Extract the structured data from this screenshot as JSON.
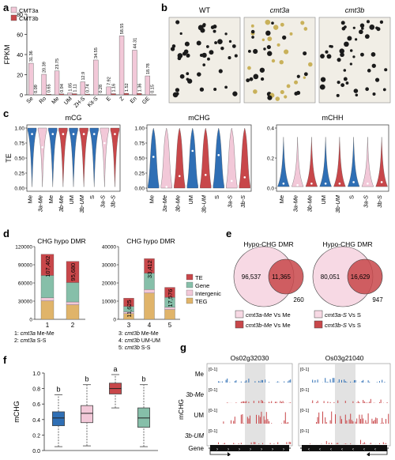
{
  "panel_labels": {
    "a": "a",
    "b": "b",
    "c": "c",
    "d": "d",
    "e": "e",
    "f": "f",
    "g": "g"
  },
  "colors": {
    "pink": "#f2c8d8",
    "red": "#c8474a",
    "blue": "#2f6fb5",
    "teal": "#86bfa9",
    "tan": "#e0b46a",
    "gray": "#aaaaaa"
  },
  "chart_data": [
    {
      "panel": "a",
      "type": "bar",
      "ylabel": "FPKM",
      "ylim": [
        0,
        80
      ],
      "yticks": [
        0,
        20,
        40,
        60,
        80
      ],
      "categories": [
        "Se",
        "Ro",
        "Me",
        "UM",
        "ZH-S",
        "Kit-S",
        "E",
        "Z",
        "En",
        "GE"
      ],
      "series": [
        {
          "name": "CMT3a",
          "color": "#f2c8d8",
          "values": [
            31.36,
            20.39,
            23.75,
            1.85,
            12.9,
            34.55,
            7.92,
            58.55,
            44.31,
            18.78
          ],
          "labels": [
            "31.36",
            "20.39",
            "23.75",
            "1.85",
            "12.9",
            "34.55",
            "7.92",
            "58.55",
            "44.31",
            "18.78"
          ]
        },
        {
          "name": "CMT3b",
          "color": "#c8474a",
          "values": [
            0.09,
            0.65,
            0.94,
            1.11,
            0.74,
            0.28,
            1.16,
            1.52,
            1.36,
            0.15
          ],
          "labels": [
            "0.09",
            "0.65",
            "0.94",
            "1.11",
            "0.74",
            "0.28",
            "1.16",
            "1.52",
            "1.36",
            "0.15"
          ]
        }
      ]
    },
    {
      "panel": "c",
      "type": "violin",
      "ylabel": "TE",
      "charts": [
        {
          "title": "mCG",
          "ylim": [
            0,
            1.0
          ],
          "yticks": [
            "0.00",
            "0.25",
            "0.50",
            "0.75",
            "1.00"
          ],
          "categories": [
            "Me",
            "3a-Me",
            "Me",
            "3b-Me",
            "UM",
            "3b-UM",
            "S",
            "3a-S",
            "3b-S"
          ],
          "medians": [
            0.9,
            0.68,
            0.9,
            0.9,
            0.9,
            0.9,
            0.9,
            0.75,
            0.9
          ]
        },
        {
          "title": "mCHG",
          "ylim": [
            0,
            1.0
          ],
          "yticks": [
            "0.00",
            "0.25",
            "0.50",
            "0.75",
            "1.00"
          ],
          "categories": [
            "Me",
            "3a-Me",
            "3b-Me",
            "UM",
            "3b-UM",
            "S",
            "3a-S",
            "3b-S"
          ],
          "medians": [
            0.52,
            0.02,
            0.2,
            0.62,
            0.22,
            0.55,
            0.12,
            0.18
          ]
        },
        {
          "title": "mCHH",
          "ylim": [
            0,
            0.4
          ],
          "yticks": [
            "0.0",
            "0.2",
            "0.4"
          ],
          "categories": [
            "Me",
            "3a-Me",
            "3b-Me",
            "UM",
            "3b-UM",
            "S",
            "3a-S",
            "3b-S"
          ],
          "medians": [
            0.03,
            0.02,
            0.03,
            0.03,
            0.03,
            0.04,
            0.03,
            0.04
          ]
        }
      ]
    },
    {
      "panel": "d",
      "type": "stacked-bar",
      "legend": [
        "TE",
        "Gene",
        "Intergenic",
        "TEG"
      ],
      "left": {
        "title": "CHG hypo DMR",
        "ylim": [
          0,
          120000
        ],
        "yticks": [
          "0",
          "30000",
          "60000",
          "90000",
          "120000"
        ],
        "bars": [
          {
            "x": "1",
            "total": 107402,
            "label": "107,402",
            "parts": [
              35000,
              37000,
              5000,
              30402
            ]
          },
          {
            "x": "2",
            "total": 95680,
            "label": "95,680",
            "parts": [
              35000,
              32000,
              4680,
              24000
            ]
          }
        ]
      },
      "right": {
        "title": "CHG hypo DMR",
        "ylim": [
          0,
          40000
        ],
        "yticks": [
          "0",
          "10000",
          "20000",
          "30000",
          "40000"
        ],
        "bars": [
          {
            "x": "3",
            "total": 11625,
            "label": "11,625",
            "parts": [
              4500,
              3000,
              1000,
              3125
            ]
          },
          {
            "x": "4",
            "total": 33412,
            "label": "33,412",
            "parts": [
              8000,
              9000,
              2000,
              14412
            ]
          },
          {
            "x": "5",
            "total": 17576,
            "label": "17,576",
            "parts": [
              5500,
              5500,
              1200,
              5376
            ]
          }
        ]
      },
      "footnotes": {
        "left": [
          {
            "n": "1:",
            "g": "cmt3a",
            "rest": "Me-Me"
          },
          {
            "n": "2:",
            "g": "cmt3a",
            "rest": "S-S"
          }
        ],
        "right": [
          {
            "n": "3:",
            "g": "cmt3b",
            "rest": "Me-Me"
          },
          {
            "n": "4:",
            "g": "cmt3b",
            "rest": "UM-UM"
          },
          {
            "n": "5:",
            "g": "cmt3b",
            "rest": "S-S"
          }
        ]
      }
    },
    {
      "panel": "e",
      "type": "venn",
      "left": {
        "title": "Hypo-CHG DMR",
        "values": [
          "96,537",
          "11,365",
          "260"
        ],
        "legend": [
          {
            "g": "cmt3a-Me",
            "rest": " Vs Me"
          },
          {
            "g": "cmt3b-Me",
            "rest": " Vs Me"
          }
        ]
      },
      "right": {
        "title": "Hypo-CHG DMR",
        "values": [
          "80,051",
          "16,629",
          "947"
        ],
        "legend": [
          {
            "g": "cmt3a-S",
            "rest": " Vs S"
          },
          {
            "g": "cmt3b-S",
            "rest": " Vs S"
          }
        ]
      }
    },
    {
      "panel": "f",
      "type": "boxplot",
      "ylabel": "mCHG",
      "ylim": [
        0,
        1.0
      ],
      "yticks": [
        "0.0",
        "0.2",
        "0.4",
        "0.6",
        "0.8",
        "1.0"
      ],
      "boxes": [
        {
          "letter": "b",
          "color": "#2f6fb5",
          "min": 0.05,
          "q1": 0.32,
          "median": 0.42,
          "q3": 0.5,
          "max": 0.72
        },
        {
          "letter": "b",
          "color": "#f2c8d8",
          "min": 0.06,
          "q1": 0.36,
          "median": 0.48,
          "q3": 0.58,
          "max": 0.85
        },
        {
          "letter": "a",
          "color": "#c8474a",
          "min": 0.55,
          "q1": 0.73,
          "median": 0.8,
          "q3": 0.87,
          "max": 0.98
        },
        {
          "letter": "b",
          "color": "#86bfa9",
          "min": 0.05,
          "q1": 0.3,
          "median": 0.42,
          "q3": 0.55,
          "max": 0.85
        }
      ]
    }
  ],
  "micrographs": {
    "labels": [
      "WT",
      "cmt3a",
      "cmt3b"
    ]
  },
  "tracks": {
    "genes": [
      "Os02g32030",
      "Os03g21040"
    ],
    "rows": [
      "Me",
      "3b-Me",
      "UM",
      "3b-UM"
    ],
    "range_label": "[0-1]",
    "ylabel": "mCHG",
    "gene_label": "Gene"
  }
}
